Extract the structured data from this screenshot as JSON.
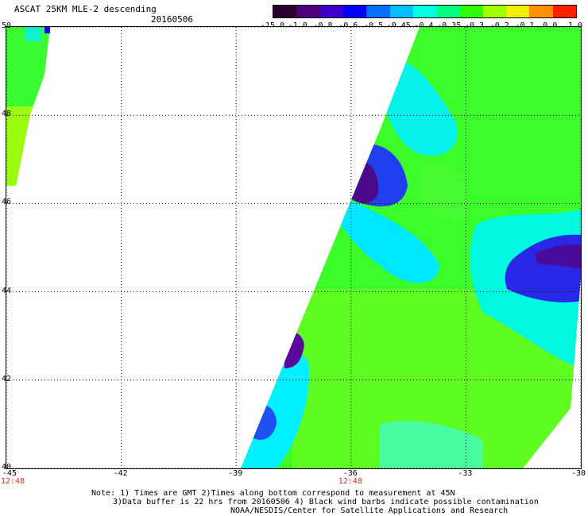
{
  "title": "ASCAT 25KM MLE-2 descending",
  "date": "20160506",
  "colorbar": {
    "labels": [
      "-15.0",
      "-1.0",
      "-0.8",
      "-0.6",
      "-0.5",
      "-0.45",
      "-0.4",
      "-0.35",
      "-0.3",
      "-0.2",
      "-0.1",
      "0.0",
      "1.0"
    ],
    "colors": [
      "#2a0030",
      "#50007a",
      "#3c00c8",
      "#0000ff",
      "#0070ff",
      "#00c0ff",
      "#00ffe0",
      "#00ff80",
      "#30ff00",
      "#a0ff00",
      "#f0f000",
      "#ff9000",
      "#ff2000"
    ]
  },
  "axes": {
    "x_ticks": [
      "-45",
      "-42",
      "-39",
      "-36",
      "-33",
      "-30"
    ],
    "y_ticks": [
      "50",
      "48",
      "46",
      "44",
      "42",
      "40"
    ],
    "xlim": [
      -45,
      -30
    ],
    "ylim": [
      40,
      50
    ],
    "grid": true
  },
  "times": [
    {
      "lon": -45,
      "label": "12:48"
    },
    {
      "lon": -36,
      "label": "12:48"
    }
  ],
  "notes": {
    "line1": "Note: 1) Times are GMT 2)Times along bottom correspond to measurement at 45N",
    "line2": "3)Data buffer is 22 hrs from 20160506 4) Black wind barbs indicate possible contamination",
    "credit": "NOAA/NESDIS/Center for Satellite Applications and Research"
  }
}
